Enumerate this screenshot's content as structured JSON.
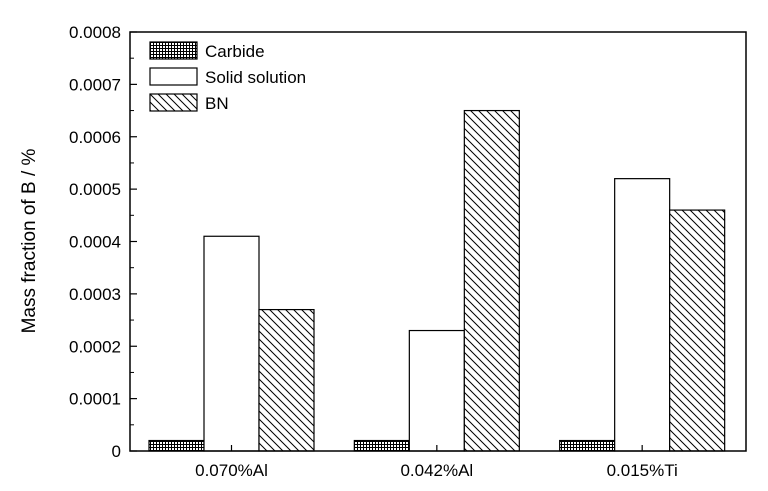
{
  "chart_data": {
    "type": "bar",
    "title": "",
    "xlabel": "",
    "ylabel": "Mass fraction of B / %",
    "ylim": [
      0,
      0.0008
    ],
    "yticks": [
      "0",
      "0.0001",
      "0.0002",
      "0.0003",
      "0.0004",
      "0.0005",
      "0.0006",
      "0.0007",
      "0.0008"
    ],
    "categories": [
      "0.070%Al",
      "0.042%Al",
      "0.015%Ti"
    ],
    "series": [
      {
        "name": "Carbide",
        "values": [
          2e-05,
          2e-05,
          2e-05
        ],
        "fill": "crosshatch"
      },
      {
        "name": "Solid solution",
        "values": [
          0.00041,
          0.00023,
          0.00052
        ],
        "fill": "empty"
      },
      {
        "name": "BN",
        "values": [
          0.00027,
          0.00065,
          0.00046
        ],
        "fill": "diagonal"
      }
    ],
    "legend_position": "top-left",
    "grid": false
  },
  "colors": {
    "ink": "#000000",
    "background": "#ffffff"
  }
}
